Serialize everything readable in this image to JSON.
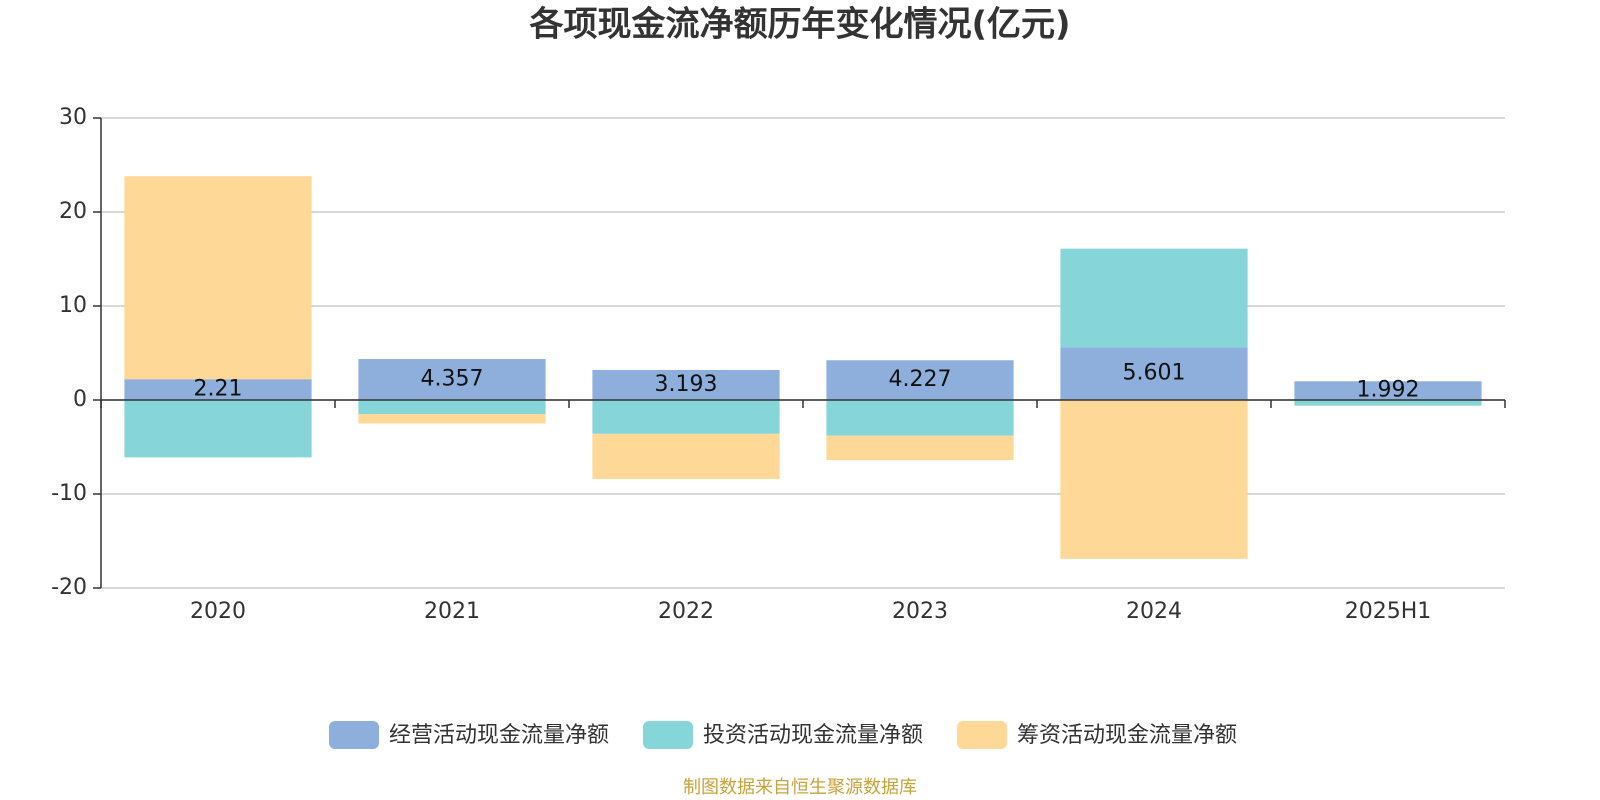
{
  "chart_data": {
    "type": "bar",
    "stacked": true,
    "title": "各项现金流净额历年变化情况(亿元)",
    "source": "制图数据来自恒生聚源数据库",
    "categories": [
      "2020",
      "2021",
      "2022",
      "2023",
      "2024",
      "2025H1"
    ],
    "series": [
      {
        "name": "经营活动现金流量净额",
        "color": "#8eaedb",
        "values": [
          2.21,
          4.357,
          3.193,
          4.227,
          5.601,
          1.992
        ],
        "labels": true
      },
      {
        "name": "投资活动现金流量净额",
        "color": "#86d5d8",
        "values": [
          -6.1,
          -1.5,
          -3.6,
          -3.8,
          10.5,
          -0.6
        ]
      },
      {
        "name": "筹资活动现金流量净额",
        "color": "#fed897",
        "values": [
          21.6,
          -1.0,
          -4.8,
          -2.6,
          -16.9,
          0
        ]
      }
    ],
    "ylim": [
      -20,
      30
    ],
    "yticks": [
      -20,
      -10,
      0,
      10,
      20,
      30
    ],
    "grid": true
  }
}
